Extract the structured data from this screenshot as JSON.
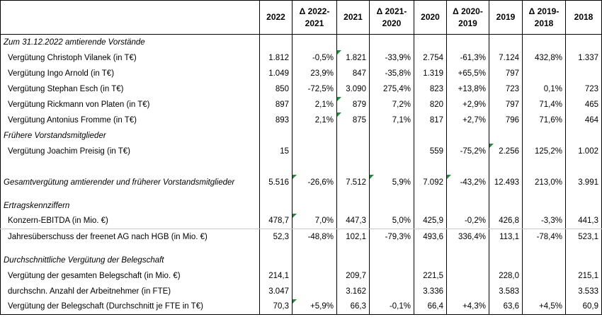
{
  "header": {
    "label": "",
    "columns": [
      "2022",
      "Δ 2022-\n2021",
      "2021",
      "Δ 2021-\n2020",
      "2020",
      "Δ 2020-\n2019",
      "2019",
      "Δ 2019-\n2018",
      "2018"
    ],
    "col_lines": [
      [
        "2022"
      ],
      [
        "Δ 2022-",
        "2021"
      ],
      [
        "2021"
      ],
      [
        "Δ 2021-",
        "2020"
      ],
      [
        "2020"
      ],
      [
        "Δ 2020-",
        "2019"
      ],
      [
        "2019"
      ],
      [
        "Δ 2019-",
        "2018"
      ],
      [
        "2018"
      ]
    ]
  },
  "rows": [
    {
      "kind": "section",
      "label": "Zum 31.12.2022 amtierende Vorstände",
      "values": [
        "",
        "",
        "",
        "",
        "",
        "",
        "",
        "",
        ""
      ]
    },
    {
      "kind": "row",
      "label": "Vergütung Christoph Vilanek (in T€)",
      "values": [
        "1.812",
        "-0,5%",
        "1.821",
        "-33,9%",
        "2.754",
        "-61,3%",
        "7.124",
        "432,8%",
        "1.337"
      ]
    },
    {
      "kind": "row",
      "label": "Vergütung Ingo Arnold (in T€)",
      "values": [
        "1.049",
        "23,9%",
        "847",
        "-35,8%",
        "1.319",
        "+65,5%",
        "797",
        "",
        ""
      ]
    },
    {
      "kind": "row",
      "label": "Vergütung Stephan Esch (in T€)",
      "values": [
        "850",
        "-72,5%",
        "3.090",
        "275,4%",
        "823",
        "+13,8%",
        "723",
        "0,1%",
        "723"
      ]
    },
    {
      "kind": "row",
      "label": "Vergütung Rickmann von Platen (in T€)",
      "values": [
        "897",
        "2,1%",
        "879",
        "7,2%",
        "820",
        "+2,9%",
        "797",
        "71,4%",
        "465"
      ]
    },
    {
      "kind": "row",
      "label": "Vergütung Antonius Fromme (in T€)",
      "values": [
        "893",
        "2,1%",
        "875",
        "7,1%",
        "817",
        "+2,7%",
        "796",
        "71,6%",
        "464"
      ]
    },
    {
      "kind": "section",
      "label": "Frühere Vorstandsmitglieder",
      "values": [
        "",
        "",
        "",
        "",
        "",
        "",
        "",
        "",
        ""
      ]
    },
    {
      "kind": "row",
      "label": "Vergütung Joachim Preisig (in T€)",
      "values": [
        "15",
        "",
        "",
        "",
        "559",
        "-75,2%",
        "2.256",
        "125,2%",
        "1.002"
      ]
    },
    {
      "kind": "spacer",
      "label": "",
      "values": [
        "",
        "",
        "",
        "",
        "",
        "",
        "",
        "",
        ""
      ]
    },
    {
      "kind": "total",
      "label": "Gesamtvergütung amtierender und früherer Vorstandsmitglieder",
      "values": [
        "5.516",
        "-26,6%",
        "7.512",
        "5,9%",
        "7.092",
        "-43,2%",
        "12.493",
        "213,0%",
        "3.991"
      ]
    },
    {
      "kind": "spacer-small",
      "label": "",
      "values": [
        "",
        "",
        "",
        "",
        "",
        "",
        "",
        "",
        ""
      ]
    },
    {
      "kind": "section",
      "label": "Ertragskennziffern",
      "values": [
        "",
        "",
        "",
        "",
        "",
        "",
        "",
        "",
        ""
      ]
    },
    {
      "kind": "row",
      "label": "Konzern-EBITDA (in Mio. €)",
      "values": [
        "478,7",
        "7,0%",
        "447,3",
        "5,0%",
        "425,9",
        "-0,2%",
        "426,8",
        "-3,3%",
        "441,3"
      ]
    },
    {
      "kind": "row",
      "label": "Jahresüberschuss der freenet AG nach HGB (in Mio. €)",
      "values": [
        "52,3",
        "-48,8%",
        "102,1",
        "-79,3%",
        "493,6",
        "336,4%",
        "113,1",
        "-78,4%",
        "523,1"
      ]
    },
    {
      "kind": "spacer-small",
      "label": "",
      "values": [
        "",
        "",
        "",
        "",
        "",
        "",
        "",
        "",
        ""
      ]
    },
    {
      "kind": "section",
      "label": "Durchschnittliche Vergütung der Belegschaft",
      "values": [
        "",
        "",
        "",
        "",
        "",
        "",
        "",
        "",
        ""
      ]
    },
    {
      "kind": "row",
      "label": "Vergütung der gesamten Belegschaft (in Mio. €)",
      "values": [
        "214,1",
        "",
        "209,7",
        "",
        "221,5",
        "",
        "228,0",
        "",
        "215,1"
      ]
    },
    {
      "kind": "row",
      "label": "durchschn. Anzahl der Arbeitnehmer (in FTE)",
      "values": [
        "3.047",
        "",
        "3.162",
        "",
        "3.336",
        "",
        "3.583",
        "",
        "3.533"
      ]
    },
    {
      "kind": "row-last",
      "label": "Vergütung der Belegschaft (Durchschnitt je FTE in T€)",
      "values": [
        "70,3",
        "+5,9%",
        "66,3",
        "-0,1%",
        "66,4",
        "+4,3%",
        "63,6",
        "+4,5%",
        "60,9"
      ]
    }
  ],
  "marker_color": "#1f8a3a"
}
